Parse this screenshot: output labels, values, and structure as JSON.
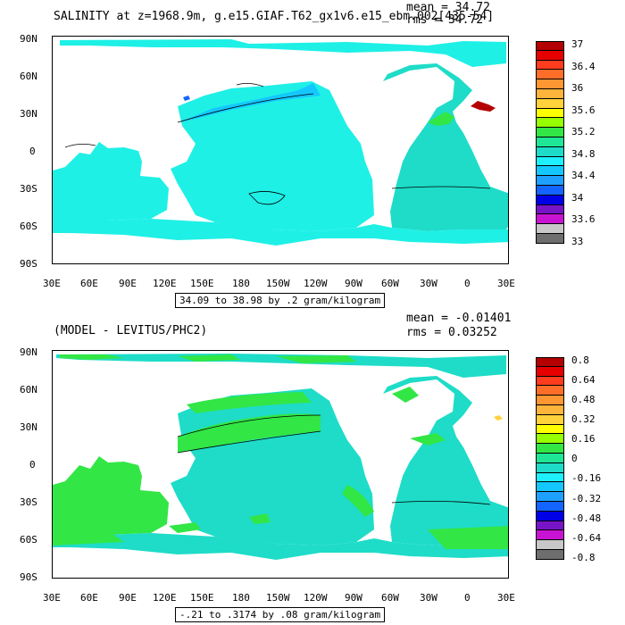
{
  "top": {
    "title": "SALINITY at z=1968.9m, g.e15.GIAF.T62_gx1v6.e15_ebm.002[435-54]",
    "mean_label": "mean = 34.72",
    "rms_label": "rms = 34.72",
    "range_label": "34.09 to 38.98 by .2 gram/kilogram",
    "lat_ticks": [
      "90N",
      "60N",
      "30N",
      "0",
      "30S",
      "60S",
      "90S"
    ],
    "lon_ticks": [
      "30E",
      "60E",
      "90E",
      "120E",
      "150E",
      "180",
      "150W",
      "120W",
      "90W",
      "60W",
      "30W",
      "0",
      "30E"
    ],
    "colorbar": {
      "colors": [
        "#b40000",
        "#e60000",
        "#ff3c1e",
        "#ff6e28",
        "#ff9632",
        "#ffb43c",
        "#ffd23c",
        "#ffff00",
        "#96ff00",
        "#32e646",
        "#1ee696",
        "#1edcc8",
        "#1ef0ff",
        "#14c8ff",
        "#1ea0ff",
        "#1464ff",
        "#0000e6",
        "#7814c8",
        "#c814d2",
        "#c8c8c8",
        "#6e6e6e"
      ],
      "labels": [
        "37",
        "36.4",
        "36",
        "35.6",
        "35.2",
        "34.8",
        "34.4",
        "34",
        "33.6",
        "33"
      ]
    }
  },
  "bottom": {
    "title": "(MODEL - LEVITUS/PHC2)",
    "mean_label": "mean = -0.01401",
    "rms_label": "rms = 0.03252",
    "range_label": "-.21 to .3174 by .08 gram/kilogram",
    "lat_ticks": [
      "90N",
      "60N",
      "30N",
      "0",
      "30S",
      "60S",
      "90S"
    ],
    "lon_ticks": [
      "30E",
      "60E",
      "90E",
      "120E",
      "150E",
      "180",
      "150W",
      "120W",
      "90W",
      "60W",
      "30W",
      "0",
      "30E"
    ],
    "colorbar": {
      "colors": [
        "#b40000",
        "#e60000",
        "#ff3c1e",
        "#ff6e28",
        "#ff9632",
        "#ffb43c",
        "#ffd23c",
        "#ffff00",
        "#96ff00",
        "#32e646",
        "#1ee696",
        "#1edcc8",
        "#1ef0ff",
        "#14c8ff",
        "#1ea0ff",
        "#1464ff",
        "#0000e6",
        "#7814c8",
        "#c814d2",
        "#c8c8c8",
        "#6e6e6e"
      ],
      "labels": [
        "0.8",
        "0.64",
        "0.48",
        "0.32",
        "0.16",
        "0",
        "-0.16",
        "-0.32",
        "-0.48",
        "-0.64",
        "-0.8"
      ]
    }
  },
  "colors": {
    "ocean_top": "#1ef0e6",
    "ocean_top_dark": "#1edcc8",
    "ocean_top_patch": "#14c8ff",
    "ocean_top_green": "#32e646",
    "ocean_bottom": "#1edcc8",
    "ocean_bottom_green": "#32e646",
    "land": "#ffffff"
  }
}
